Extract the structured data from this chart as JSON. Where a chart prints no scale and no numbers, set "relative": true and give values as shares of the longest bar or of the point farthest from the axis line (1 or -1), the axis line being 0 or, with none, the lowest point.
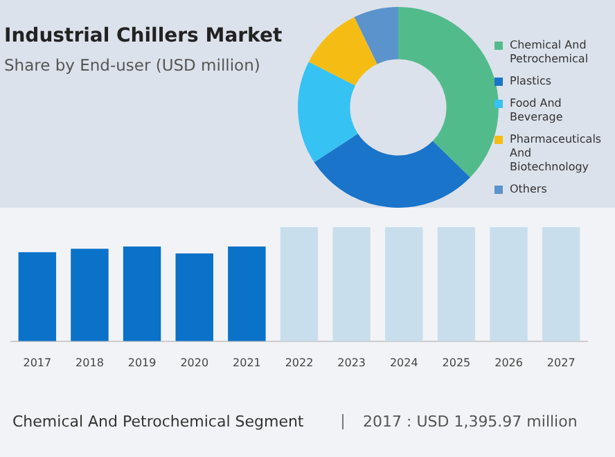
{
  "chart_data": [
    {
      "type": "donut",
      "title": "Industrial Chillers Market",
      "subtitle": "Share by End-user (USD million)",
      "categories": [
        "Chemical And Petrochemical",
        "Plastics",
        "Food And Beverage",
        "Pharmaceuticals And Biotechnology",
        "Others"
      ],
      "values": [
        37.3,
        28.5,
        16.7,
        10.3,
        7.2
      ],
      "colors": [
        "#52bb8c",
        "#1a74c9",
        "#36c2f2",
        "#f5bd14",
        "#5b93cc"
      ],
      "legend": "right"
    },
    {
      "type": "bar",
      "relative": true,
      "categories": [
        "2017",
        "2018",
        "2019",
        "2020",
        "2021",
        "2022",
        "2023",
        "2024",
        "2025",
        "2026",
        "2027"
      ],
      "values": [
        0.78,
        0.81,
        0.83,
        0.77,
        0.83,
        1,
        1,
        1,
        1,
        1,
        1
      ],
      "colors": [
        "#0a72c9",
        "#0a72c9",
        "#0a72c9",
        "#0a72c9",
        "#0a72c9",
        "#c9deed",
        "#c9deed",
        "#c9deed",
        "#c9deed",
        "#c9deed",
        "#c9deed"
      ]
    },
    {
      "type": "other",
      "annotations": [
        "Chemical And Petrochemical Segment",
        "2017 : USD 1,395.97 million"
      ]
    }
  ]
}
